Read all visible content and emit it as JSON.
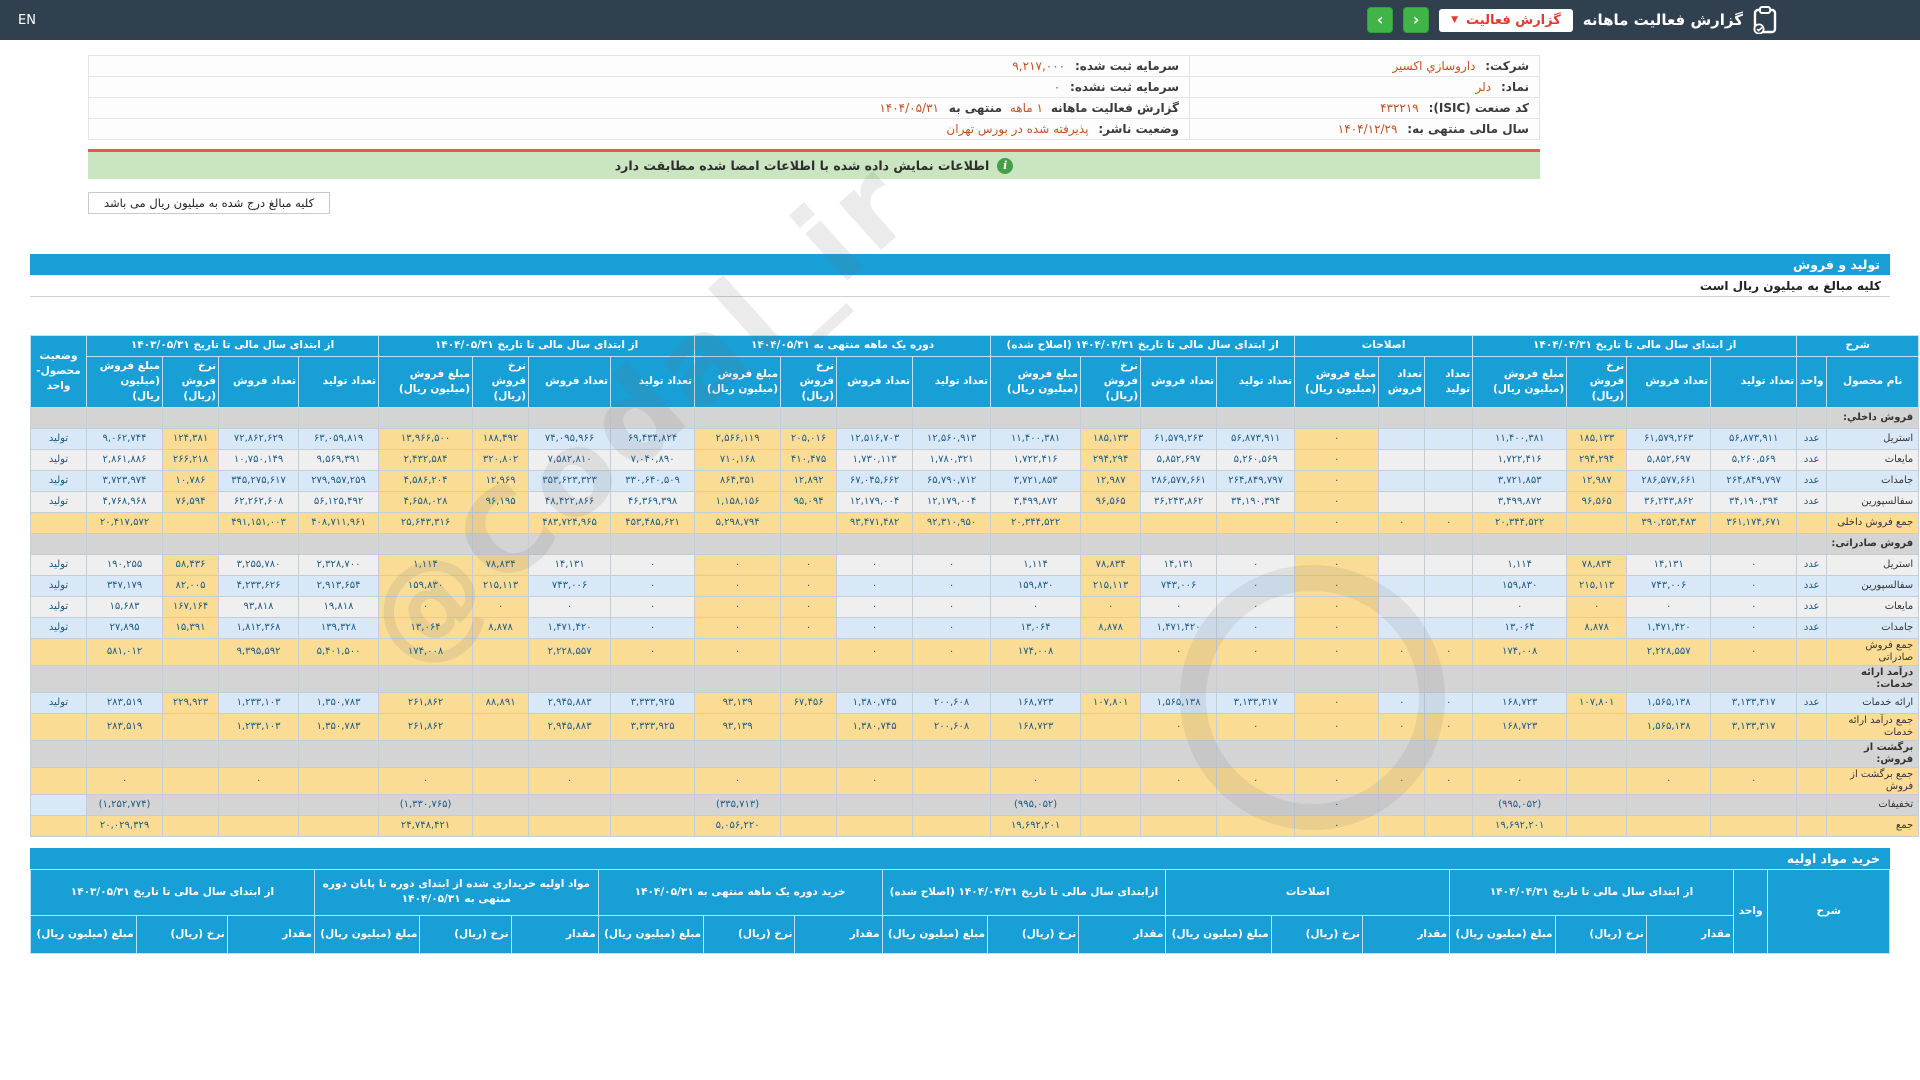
{
  "topbar": {
    "en": "EN",
    "title": "گزارش فعالیت ماهانه",
    "badge": "گزارش فعالیت",
    "prev": "‹",
    "next": "›"
  },
  "company": {
    "right": [
      {
        "label": "شرکت:",
        "value": "داروسازي اکسیر"
      },
      {
        "label": "نماد:",
        "value": "دلر"
      },
      {
        "label": "کد صنعت (ISIC):",
        "value": "۴۳۲۲۱۹"
      },
      {
        "label": "سال مالی منتهی به:",
        "value": "۱۴۰۴/۱۲/۲۹"
      }
    ],
    "left": [
      {
        "label": "سرمایه ثبت شده:",
        "value": "۹,۲۱۷,۰۰۰"
      },
      {
        "label": "سرمایه ثبت نشده:",
        "value": "۰"
      },
      {
        "label": "گزارش فعالیت ماهانه",
        "hl": "۱ ماهه",
        "label2": "منتهی به",
        "value": "۱۴۰۴/۰۵/۳۱"
      },
      {
        "label": "وضعیت ناشر:",
        "value": "پذیرفته شده در بورس تهران"
      }
    ]
  },
  "notice": "اطلاعات نمایش داده شده با اطلاعات امضا شده مطابقت دارد",
  "unit_note": "کلیه مبالغ درج شده به میلیون ریال می باشد",
  "watermark": "@Codal_ir",
  "production_sales": {
    "title": "تولید و فروش",
    "subtitle": "کلیه مبالغ به میلیون ریال است",
    "head": {
      "sharh": "شرح",
      "name_col": "نام محصول",
      "unit_col": "واحد",
      "status_col": "وضعیت محصول- واحد",
      "groups": [
        {
          "key": "cur",
          "label": "از ابتدای سال مالی تا تاریخ ۱۴۰۴/۰۴/۳۱",
          "cols": [
            "تعداد تولید",
            "تعداد فروش",
            "نرخ فروش (ریال)",
            "مبلغ فروش (میلیون ریال)"
          ]
        },
        {
          "key": "adj",
          "label": "اصلاحات",
          "cols": [
            "تعداد تولید",
            "تعداد فروش",
            "مبلغ فروش (میلیون ریال)"
          ]
        },
        {
          "key": "rev",
          "label": "از ابتدای سال مالی تا تاریخ ۱۴۰۴/۰۴/۳۱ (اصلاح شده)",
          "cols": [
            "تعداد تولید",
            "تعداد فروش",
            "نرخ فروش (ریال)",
            "مبلغ فروش (میلیون ریال)"
          ]
        },
        {
          "key": "month",
          "label": "دوره یک ماهه منتهی به ۱۴۰۴/۰۵/۳۱",
          "cols": [
            "تعداد تولید",
            "تعداد فروش",
            "نرخ فروش (ریال)",
            "مبلغ فروش (میلیون ریال)"
          ]
        },
        {
          "key": "ytd",
          "label": "از ابتدای سال مالی تا تاریخ ۱۴۰۴/۰۵/۳۱",
          "cols": [
            "تعداد تولید",
            "تعداد فروش",
            "نرخ فروش (ریال)",
            "مبلغ فروش (میلیون ریال)"
          ]
        },
        {
          "key": "prev",
          "label": "از ابتدای سال مالی تا تاریخ ۱۴۰۳/۰۵/۳۱",
          "cols": [
            "تعداد تولید",
            "تعداد فروش",
            "نرخ فروش (ریال)",
            "مبلغ فروش (میلیون ریال)"
          ]
        }
      ]
    },
    "rows": [
      {
        "type": "group",
        "name": "فروش داخلي:"
      },
      {
        "type": "data",
        "alt": 0,
        "name": "استریل",
        "unit": "عدد",
        "status": "تولید",
        "cur": [
          "۵۶,۸۷۳,۹۱۱",
          "۶۱,۵۷۹,۲۶۳",
          "۱۸۵,۱۳۳",
          "۱۱,۴۰۰,۳۸۱"
        ],
        "adj": [
          "",
          "",
          "۰"
        ],
        "rev": [
          "۵۶,۸۷۳,۹۱۱",
          "۶۱,۵۷۹,۲۶۳",
          "۱۸۵,۱۳۳",
          "۱۱,۴۰۰,۳۸۱"
        ],
        "month": [
          "۱۲,۵۶۰,۹۱۳",
          "۱۲,۵۱۶,۷۰۳",
          "۲۰۵,۰۱۶",
          "۲,۵۶۶,۱۱۹"
        ],
        "ytd": [
          "۶۹,۴۳۴,۸۲۴",
          "۷۴,۰۹۵,۹۶۶",
          "۱۸۸,۴۹۲",
          "۱۳,۹۶۶,۵۰۰"
        ],
        "prev": [
          "۶۳,۰۵۹,۸۱۹",
          "۷۲,۸۶۲,۶۲۹",
          "۱۲۴,۳۸۱",
          "۹,۰۶۲,۷۴۴"
        ]
      },
      {
        "type": "data",
        "alt": 1,
        "name": "مایعات",
        "unit": "عدد",
        "status": "تولید",
        "cur": [
          "۵,۲۶۰,۵۶۹",
          "۵,۸۵۲,۶۹۷",
          "۲۹۴,۲۹۴",
          "۱,۷۲۲,۴۱۶"
        ],
        "adj": [
          "",
          "",
          "۰"
        ],
        "rev": [
          "۵,۲۶۰,۵۶۹",
          "۵,۸۵۲,۶۹۷",
          "۲۹۴,۲۹۴",
          "۱,۷۲۲,۴۱۶"
        ],
        "month": [
          "۱,۷۸۰,۳۲۱",
          "۱,۷۳۰,۱۱۳",
          "۴۱۰,۴۷۵",
          "۷۱۰,۱۶۸"
        ],
        "ytd": [
          "۷,۰۴۰,۸۹۰",
          "۷,۵۸۲,۸۱۰",
          "۳۲۰,۸۰۲",
          "۲,۴۳۲,۵۸۴"
        ],
        "prev": [
          "۹,۵۶۹,۳۹۱",
          "۱۰,۷۵۰,۱۴۹",
          "۲۶۶,۲۱۸",
          "۲,۸۶۱,۸۸۶"
        ]
      },
      {
        "type": "data",
        "alt": 0,
        "name": "جامدات",
        "unit": "عدد",
        "status": "تولید",
        "cur": [
          "۲۶۴,۸۴۹,۷۹۷",
          "۲۸۶,۵۷۷,۶۶۱",
          "۱۲,۹۸۷",
          "۳,۷۲۱,۸۵۳"
        ],
        "adj": [
          "",
          "",
          "۰"
        ],
        "rev": [
          "۲۶۴,۸۴۹,۷۹۷",
          "۲۸۶,۵۷۷,۶۶۱",
          "۱۲,۹۸۷",
          "۳,۷۲۱,۸۵۳"
        ],
        "month": [
          "۶۵,۷۹۰,۷۱۲",
          "۶۷,۰۴۵,۶۶۲",
          "۱۲,۸۹۲",
          "۸۶۴,۳۵۱"
        ],
        "ytd": [
          "۳۳۰,۶۴۰,۵۰۹",
          "۳۵۳,۶۲۳,۳۲۳",
          "۱۲,۹۶۹",
          "۴,۵۸۶,۲۰۴"
        ],
        "prev": [
          "۲۷۹,۹۵۷,۲۵۹",
          "۳۴۵,۲۷۵,۶۱۷",
          "۱۰,۷۸۶",
          "۳,۷۲۳,۹۷۴"
        ]
      },
      {
        "type": "data",
        "alt": 1,
        "name": "سفالسپورین",
        "unit": "عدد",
        "status": "تولید",
        "cur": [
          "۳۴,۱۹۰,۳۹۴",
          "۳۶,۲۴۳,۸۶۲",
          "۹۶,۵۶۵",
          "۳,۴۹۹,۸۷۲"
        ],
        "adj": [
          "",
          "",
          "۰"
        ],
        "rev": [
          "۳۴,۱۹۰,۳۹۴",
          "۳۶,۲۴۳,۸۶۲",
          "۹۶,۵۶۵",
          "۳,۴۹۹,۸۷۲"
        ],
        "month": [
          "۱۲,۱۷۹,۰۰۴",
          "۱۲,۱۷۹,۰۰۴",
          "۹۵,۰۹۴",
          "۱,۱۵۸,۱۵۶"
        ],
        "ytd": [
          "۴۶,۳۶۹,۳۹۸",
          "۴۸,۴۲۲,۸۶۶",
          "۹۶,۱۹۵",
          "۴,۶۵۸,۰۲۸"
        ],
        "prev": [
          "۵۶,۱۲۵,۴۹۲",
          "۶۲,۲۶۲,۶۰۸",
          "۷۶,۵۹۴",
          "۴,۷۶۸,۹۶۸"
        ]
      },
      {
        "type": "total",
        "name": "جمع فروش داخلی",
        "unit": "",
        "status": "",
        "cur": [
          "۳۶۱,۱۷۴,۶۷۱",
          "۳۹۰,۲۵۳,۴۸۳",
          "",
          "۲۰,۳۴۴,۵۲۲"
        ],
        "adj": [
          "۰",
          "۰",
          "۰"
        ],
        "rev": [
          "",
          "",
          "",
          "۲۰,۳۴۴,۵۲۲"
        ],
        "month": [
          "۹۲,۳۱۰,۹۵۰",
          "۹۳,۴۷۱,۴۸۲",
          "",
          "۵,۲۹۸,۷۹۴"
        ],
        "ytd": [
          "۴۵۳,۴۸۵,۶۲۱",
          "۴۸۳,۷۲۴,۹۶۵",
          "",
          "۲۵,۶۴۳,۳۱۶"
        ],
        "prev": [
          "۴۰۸,۷۱۱,۹۶۱",
          "۴۹۱,۱۵۱,۰۰۳",
          "",
          "۲۰,۴۱۷,۵۷۲"
        ]
      },
      {
        "type": "group",
        "name": "فروش صادراتی:"
      },
      {
        "type": "data",
        "alt": 1,
        "name": "استریل",
        "unit": "عدد",
        "status": "تولید",
        "cur": [
          "۰",
          "۱۴,۱۳۱",
          "۷۸,۸۳۴",
          "۱,۱۱۴"
        ],
        "adj": [
          "",
          "",
          "۰"
        ],
        "rev": [
          "۰",
          "۱۴,۱۳۱",
          "۷۸,۸۳۴",
          "۱,۱۱۴"
        ],
        "month": [
          "۰",
          "۰",
          "۰",
          "۰"
        ],
        "ytd": [
          "۰",
          "۱۴,۱۳۱",
          "۷۸,۸۳۴",
          "۱,۱۱۴"
        ],
        "prev": [
          "۲,۳۲۸,۷۰۰",
          "۳,۲۵۵,۷۸۰",
          "۵۸,۴۳۶",
          "۱۹۰,۲۵۵"
        ]
      },
      {
        "type": "data",
        "alt": 0,
        "name": "سفالسپورین",
        "unit": "عدد",
        "status": "تولید",
        "cur": [
          "۰",
          "۷۴۳,۰۰۶",
          "۲۱۵,۱۱۳",
          "۱۵۹,۸۳۰"
        ],
        "adj": [
          "",
          "",
          "۰"
        ],
        "rev": [
          "۰",
          "۷۴۳,۰۰۶",
          "۲۱۵,۱۱۳",
          "۱۵۹,۸۳۰"
        ],
        "month": [
          "۰",
          "۰",
          "۰",
          "۰"
        ],
        "ytd": [
          "۰",
          "۷۴۳,۰۰۶",
          "۲۱۵,۱۱۳",
          "۱۵۹,۸۳۰"
        ],
        "prev": [
          "۲,۹۱۳,۶۵۴",
          "۴,۲۳۳,۶۲۶",
          "۸۲,۰۰۵",
          "۳۴۷,۱۷۹"
        ]
      },
      {
        "type": "data",
        "alt": 1,
        "name": "مایعات",
        "unit": "عدد",
        "status": "تولید",
        "cur": [
          "۰",
          "۰",
          "۰",
          "۰"
        ],
        "adj": [
          "",
          "",
          "۰"
        ],
        "rev": [
          "۰",
          "۰",
          "۰",
          "۰"
        ],
        "month": [
          "۰",
          "۰",
          "۰",
          "۰"
        ],
        "ytd": [
          "۰",
          "۰",
          "۰",
          "۰"
        ],
        "prev": [
          "۱۹,۸۱۸",
          "۹۳,۸۱۸",
          "۱۶۷,۱۶۴",
          "۱۵,۶۸۳"
        ]
      },
      {
        "type": "data",
        "alt": 0,
        "name": "جامدات",
        "unit": "عدد",
        "status": "تولید",
        "cur": [
          "۰",
          "۱,۴۷۱,۴۲۰",
          "۸,۸۷۸",
          "۱۳,۰۶۴"
        ],
        "adj": [
          "",
          "",
          "۰"
        ],
        "rev": [
          "۰",
          "۱,۴۷۱,۴۲۰",
          "۸,۸۷۸",
          "۱۳,۰۶۴"
        ],
        "month": [
          "۰",
          "۰",
          "۰",
          "۰"
        ],
        "ytd": [
          "۰",
          "۱,۴۷۱,۴۲۰",
          "۸,۸۷۸",
          "۱۳,۰۶۴"
        ],
        "prev": [
          "۱۳۹,۳۲۸",
          "۱,۸۱۲,۳۶۸",
          "۱۵,۳۹۱",
          "۲۷,۸۹۵"
        ]
      },
      {
        "type": "total",
        "name": "جمع فروش صادراتی",
        "unit": "",
        "status": "",
        "cur": [
          "۰",
          "۲,۲۲۸,۵۵۷",
          "",
          "۱۷۴,۰۰۸"
        ],
        "adj": [
          "۰",
          "۰",
          "۰"
        ],
        "rev": [
          "۰",
          "۰",
          "",
          "۱۷۴,۰۰۸"
        ],
        "month": [
          "۰",
          "۰",
          "",
          "۰"
        ],
        "ytd": [
          "۰",
          "۲,۲۲۸,۵۵۷",
          "",
          "۱۷۴,۰۰۸"
        ],
        "prev": [
          "۵,۴۰۱,۵۰۰",
          "۹,۳۹۵,۵۹۲",
          "",
          "۵۸۱,۰۱۲"
        ]
      },
      {
        "type": "group",
        "name": "درآمد ارائه خدمات:"
      },
      {
        "type": "data",
        "alt": 0,
        "name": "ارائه خدمات",
        "unit": "عدد",
        "status": "تولید",
        "cur": [
          "۳,۱۳۳,۳۱۷",
          "۱,۵۶۵,۱۳۸",
          "۱۰۷,۸۰۱",
          "۱۶۸,۷۲۳"
        ],
        "adj": [
          "۰",
          "۰",
          "۰"
        ],
        "rev": [
          "۳,۱۳۳,۳۱۷",
          "۱,۵۶۵,۱۳۸",
          "۱۰۷,۸۰۱",
          "۱۶۸,۷۲۳"
        ],
        "month": [
          "۲۰۰,۶۰۸",
          "۱,۳۸۰,۷۴۵",
          "۶۷,۴۵۶",
          "۹۳,۱۳۹"
        ],
        "ytd": [
          "۳,۳۳۳,۹۲۵",
          "۲,۹۴۵,۸۸۳",
          "۸۸,۸۹۱",
          "۲۶۱,۸۶۲"
        ],
        "prev": [
          "۱,۳۵۰,۷۸۳",
          "۱,۲۳۳,۱۰۳",
          "۲۲۹,۹۲۳",
          "۲۸۳,۵۱۹"
        ]
      },
      {
        "type": "total",
        "name": "جمع درآمد ارائه خدمات",
        "unit": "",
        "status": "",
        "cur": [
          "۳,۱۳۳,۳۱۷",
          "۱,۵۶۵,۱۳۸",
          "",
          "۱۶۸,۷۲۳"
        ],
        "adj": [
          "۰",
          "۰",
          "۰"
        ],
        "rev": [
          "۰",
          "۰",
          "",
          "۱۶۸,۷۲۳"
        ],
        "month": [
          "۲۰۰,۶۰۸",
          "۱,۳۸۰,۷۴۵",
          "",
          "۹۳,۱۳۹"
        ],
        "ytd": [
          "۳,۳۳۳,۹۲۵",
          "۲,۹۴۵,۸۸۳",
          "",
          "۲۶۱,۸۶۲"
        ],
        "prev": [
          "۱,۳۵۰,۷۸۳",
          "۱,۲۳۳,۱۰۳",
          "",
          "۲۸۳,۵۱۹"
        ]
      },
      {
        "type": "group",
        "name": "برگشت از فروش:"
      },
      {
        "type": "total",
        "name": "جمع برگشت از فروش",
        "unit": "",
        "status": "",
        "cur": [
          "۰",
          "۰",
          "",
          "۰"
        ],
        "adj": [
          "۰",
          "۰",
          "۰"
        ],
        "rev": [
          "۰",
          "۰",
          "",
          "۰"
        ],
        "month": [
          "",
          "۰",
          "",
          "۰"
        ],
        "ytd": [
          "",
          "۰",
          "",
          "۰"
        ],
        "prev": [
          "",
          "۰",
          "",
          "۰"
        ]
      },
      {
        "type": "discount",
        "name": "تخفیفات",
        "unit": "",
        "status": "",
        "cur": [
          "",
          "",
          "",
          "(۹۹۵,۰۵۲)"
        ],
        "adj": [
          "",
          "",
          "۰"
        ],
        "rev": [
          "",
          "",
          "",
          "(۹۹۵,۰۵۲)"
        ],
        "month": [
          "",
          "",
          "",
          "(۳۳۵,۷۱۳)"
        ],
        "ytd": [
          "",
          "",
          "",
          "(۱,۳۳۰,۷۶۵)"
        ],
        "prev": [
          "",
          "",
          "",
          "(۱,۲۵۲,۷۷۴)"
        ]
      },
      {
        "type": "total",
        "name": "جمع",
        "unit": "",
        "status": "",
        "cur": [
          "",
          "",
          "",
          "۱۹,۶۹۲,۲۰۱"
        ],
        "adj": [
          "",
          "",
          "۰"
        ],
        "rev": [
          "",
          "",
          "",
          "۱۹,۶۹۲,۲۰۱"
        ],
        "month": [
          "",
          "",
          "",
          "۵,۰۵۶,۲۲۰"
        ],
        "ytd": [
          "",
          "",
          "",
          "۲۴,۷۴۸,۴۲۱"
        ],
        "prev": [
          "",
          "",
          "",
          "۲۰,۰۲۹,۳۲۹"
        ]
      }
    ]
  },
  "purchases": {
    "title": "خرید مواد اولیه",
    "head": {
      "sharh": "شرح",
      "unit_col": "واحد",
      "groups": [
        {
          "label": "از ابتدای سال مالی تا تاریخ ۱۴۰۴/۰۴/۳۱"
        },
        {
          "label": "اصلاحات"
        },
        {
          "label": "ازابتدای سال مالی تا تاریخ ۱۴۰۴/۰۴/۳۱ (اصلاح شده)"
        },
        {
          "label": "خرید دوره یک ماهه منتهی به ۱۴۰۴/۰۵/۳۱"
        },
        {
          "label": "مواد اولیه خریداری شده از ابتدای دوره تا پایان دوره منتهی به ۱۴۰۴/۰۵/۳۱"
        },
        {
          "label": "از ابتدای سال مالی تا تاریخ ۱۴۰۳/۰۵/۳۱"
        }
      ],
      "sub_cols": [
        "مقدار",
        "نرخ (ریال)",
        "مبلغ (میلیون ریال)"
      ]
    }
  }
}
